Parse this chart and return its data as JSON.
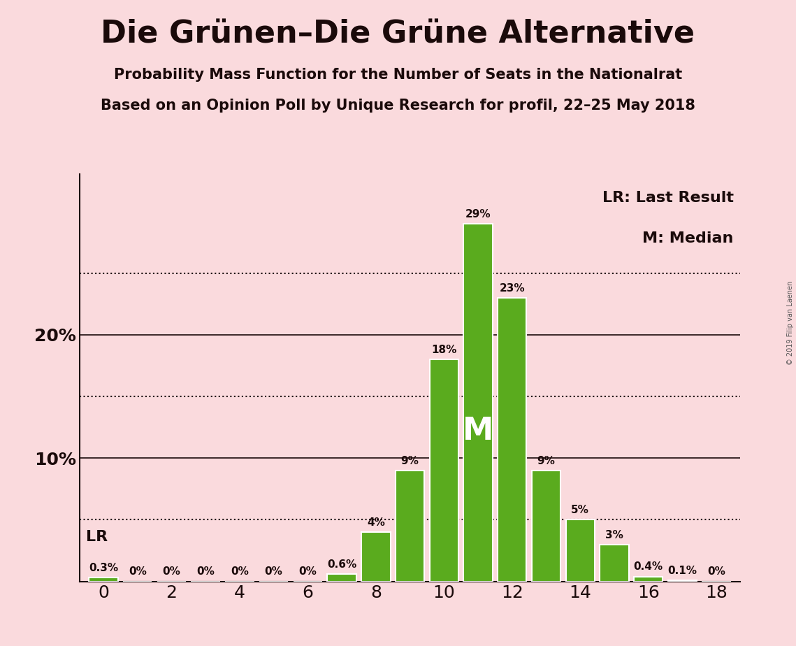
{
  "title": "Die Grünen–Die Grüne Alternative",
  "subtitle1": "Probability Mass Function for the Number of Seats in the Nationalrat",
  "subtitle2": "Based on an Opinion Poll by Unique Research for profil, 22–25 May 2018",
  "copyright": "© 2019 Filip van Laenen",
  "seats": [
    0,
    1,
    2,
    3,
    4,
    5,
    6,
    7,
    8,
    9,
    10,
    11,
    12,
    13,
    14,
    15,
    16,
    17,
    18
  ],
  "probabilities": [
    0.3,
    0,
    0,
    0,
    0,
    0,
    0,
    0.6,
    4,
    9,
    18,
    29,
    23,
    9,
    5,
    3,
    0.4,
    0.1,
    0
  ],
  "bar_color": "#5aab1e",
  "bar_edge_color": "#ffffff",
  "background_color": "#fadadd",
  "text_color": "#1a0a0a",
  "median_seat": 11,
  "lr_seat": 0,
  "ylim": [
    0,
    33
  ],
  "dotted_lines": [
    5,
    15,
    25
  ],
  "solid_lines": [
    10,
    20
  ],
  "legend_lr": "LR: Last Result",
  "legend_m": "M: Median",
  "bar_labels": {
    "0": "0.3%",
    "1": "0%",
    "2": "0%",
    "3": "0%",
    "4": "0%",
    "5": "0%",
    "6": "0%",
    "7": "0.6%",
    "8": "4%",
    "9": "9%",
    "10": "18%",
    "11": "29%",
    "12": "23%",
    "13": "9%",
    "14": "5%",
    "15": "3%",
    "16": "0.4%",
    "17": "0.1%",
    "18": "0%"
  }
}
